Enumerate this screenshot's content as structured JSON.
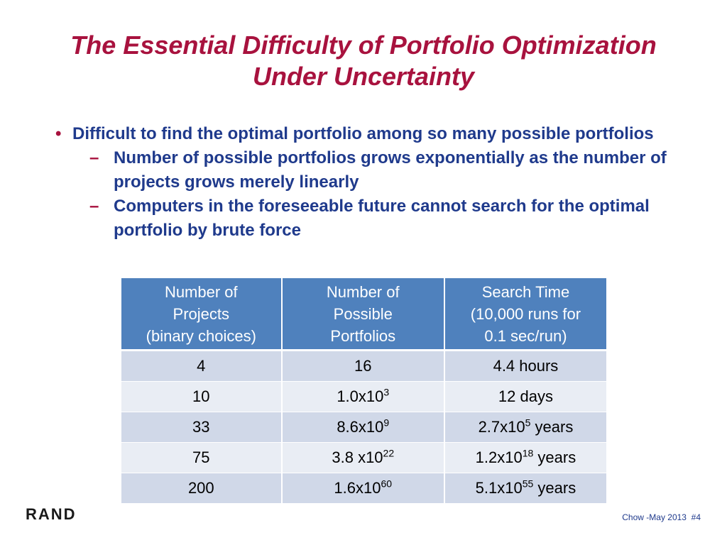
{
  "slide": {
    "title_line1": "The Essential Difficulty of Portfolio Optimization",
    "title_line2": "Under Uncertainty",
    "bullet": "Difficult to find the optimal portfolio among so many possible portfolios",
    "sub_bullets": [
      "Number of possible portfolios grows exponentially as the number of projects grows merely linearly",
      "Computers in the foreseeable future cannot search for the optimal portfolio by brute force"
    ],
    "bullet_marker": "•",
    "sub_marker": "–",
    "colors": {
      "title": "#a8123e",
      "body": "#1f3a8c",
      "table_header": "#4f81bd",
      "row_odd": "#d0d8e8",
      "row_even": "#e9edf4"
    }
  },
  "table": {
    "headers": [
      [
        "Number of",
        "Projects",
        "(binary choices)"
      ],
      [
        "Number of",
        "Possible",
        "Portfolios"
      ],
      [
        "Search Time",
        "(10,000 runs for",
        "0.1 sec/run)"
      ]
    ],
    "rows": [
      {
        "projects": "4",
        "portfolios": {
          "base": "16",
          "exp": ""
        },
        "time": {
          "base": "4.4 hours",
          "exp": "",
          "unit": ""
        }
      },
      {
        "projects": "10",
        "portfolios": {
          "base": "1.0x10",
          "exp": "3"
        },
        "time": {
          "base": "12 days",
          "exp": "",
          "unit": ""
        }
      },
      {
        "projects": "33",
        "portfolios": {
          "base": "8.6x10",
          "exp": "9"
        },
        "time": {
          "base": "2.7x10",
          "exp": "5",
          "unit": " years"
        }
      },
      {
        "projects": "75",
        "portfolios": {
          "base": "3.8 x10",
          "exp": "22"
        },
        "time": {
          "base": "1.2x10",
          "exp": "18",
          "unit": " years"
        }
      },
      {
        "projects": "200",
        "portfolios": {
          "base": "1.6x10",
          "exp": "60"
        },
        "time": {
          "base": "5.1x10",
          "exp": "55",
          "unit": " years"
        }
      }
    ]
  },
  "footer": {
    "logo": "RAND",
    "text": "Chow -May 2013  #4"
  }
}
